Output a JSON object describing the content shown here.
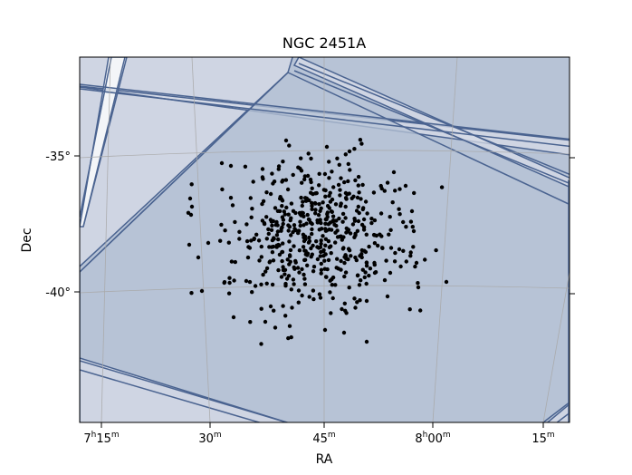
{
  "chart_data": {
    "type": "scatter",
    "title": "NGC 2451A",
    "xlabel": "RA",
    "ylabel": "Dec",
    "projection": "sky (RA/Dec celestial grid)",
    "grid": true,
    "x_ticks": [
      {
        "ra_hours": 7.25,
        "label_main": "7",
        "label_h": "h",
        "label_min": "15",
        "label_m": "m"
      },
      {
        "ra_hours": 7.5,
        "label_main": "",
        "label_h": "",
        "label_min": "30",
        "label_m": "m"
      },
      {
        "ra_hours": 7.75,
        "label_main": "",
        "label_h": "",
        "label_min": "45",
        "label_m": "m"
      },
      {
        "ra_hours": 8.0,
        "label_main": "8",
        "label_h": "h",
        "label_min": "00",
        "label_m": "m"
      },
      {
        "ra_hours": 8.25,
        "label_main": "",
        "label_h": "",
        "label_min": "15",
        "label_m": "m"
      }
    ],
    "y_ticks": [
      {
        "dec_deg": -35,
        "label": "-35°"
      },
      {
        "dec_deg": -40,
        "label": "-40°"
      }
    ],
    "series": [
      {
        "marker": "point",
        "color": "#000000",
        "points": []
      }
    ],
    "footprints_color": "#4a6390",
    "footprints_fill": "#b7c3d6"
  }
}
